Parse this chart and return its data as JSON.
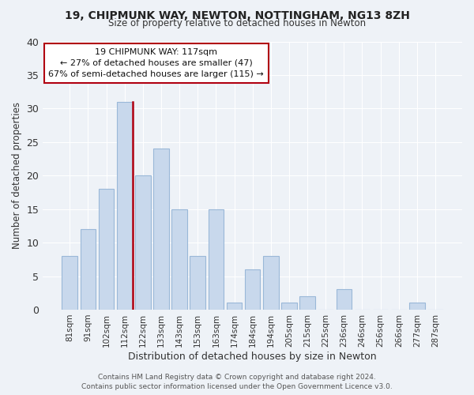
{
  "title": "19, CHIPMUNK WAY, NEWTON, NOTTINGHAM, NG13 8ZH",
  "subtitle": "Size of property relative to detached houses in Newton",
  "xlabel": "Distribution of detached houses by size in Newton",
  "ylabel": "Number of detached properties",
  "bar_labels": [
    "81sqm",
    "91sqm",
    "102sqm",
    "112sqm",
    "122sqm",
    "133sqm",
    "143sqm",
    "153sqm",
    "163sqm",
    "174sqm",
    "184sqm",
    "194sqm",
    "205sqm",
    "215sqm",
    "225sqm",
    "236sqm",
    "246sqm",
    "256sqm",
    "266sqm",
    "277sqm",
    "287sqm"
  ],
  "bar_values": [
    8,
    12,
    18,
    31,
    20,
    24,
    15,
    8,
    15,
    1,
    6,
    8,
    1,
    2,
    0,
    3,
    0,
    0,
    0,
    1,
    0
  ],
  "bar_color": "#c8d8ec",
  "bar_edge_color": "#9ab8d8",
  "highlight_bar_index": 3,
  "highlight_color": "#b00010",
  "annotation_text_line1": "19 CHIPMUNK WAY: 117sqm",
  "annotation_text_line2": "← 27% of detached houses are smaller (47)",
  "annotation_text_line3": "67% of semi-detached houses are larger (115) →",
  "ylim": [
    0,
    40
  ],
  "yticks": [
    0,
    5,
    10,
    15,
    20,
    25,
    30,
    35,
    40
  ],
  "footer_line1": "Contains HM Land Registry data © Crown copyright and database right 2024.",
  "footer_line2": "Contains public sector information licensed under the Open Government Licence v3.0.",
  "background_color": "#eef2f7",
  "grid_color": "#ffffff"
}
